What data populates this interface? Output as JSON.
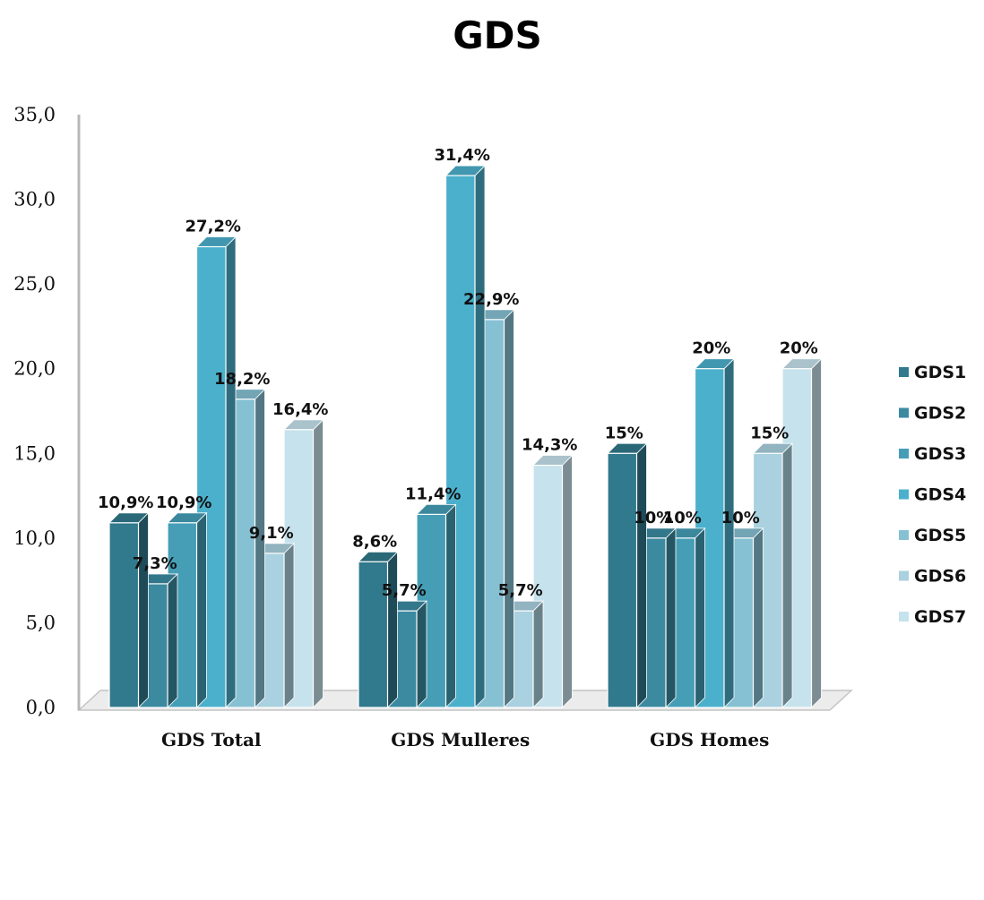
{
  "chart_data": {
    "type": "bar",
    "title": "GDS",
    "xlabel": "",
    "ylabel": "",
    "ylim": [
      0,
      35
    ],
    "yticks": [
      "0,0",
      "5,0",
      "10,0",
      "15,0",
      "20,0",
      "25,0",
      "30,0",
      "35,0"
    ],
    "categories": [
      "GDS Total",
      "GDS Mulleres",
      "GDS Homes"
    ],
    "legend_position": "right",
    "series": [
      {
        "name": "GDS1",
        "color": "#31798c",
        "values": [
          10.9,
          8.6,
          15
        ],
        "labels": [
          "10,9%",
          "8,6%",
          "15%"
        ]
      },
      {
        "name": "GDS2",
        "color": "#3b8aa0",
        "values": [
          7.3,
          5.7,
          10
        ],
        "labels": [
          "7,3%",
          "5,7%",
          "10%"
        ]
      },
      {
        "name": "GDS3",
        "color": "#459eb6",
        "values": [
          10.9,
          11.4,
          10
        ],
        "labels": [
          "10,9%",
          "11,4%",
          "10%"
        ]
      },
      {
        "name": "GDS4",
        "color": "#4bb0cb",
        "values": [
          27.2,
          31.4,
          20
        ],
        "labels": [
          "27,2%",
          "31,4%",
          "20%"
        ]
      },
      {
        "name": "GDS5",
        "color": "#86c0d3",
        "values": [
          18.2,
          22.9,
          10
        ],
        "labels": [
          "18,2%",
          "22,9%",
          "10%"
        ]
      },
      {
        "name": "GDS6",
        "color": "#a9d1df",
        "values": [
          9.1,
          5.7,
          15
        ],
        "labels": [
          "9,1%",
          "5,7%",
          "15%"
        ]
      },
      {
        "name": "GDS7",
        "color": "#c6e2ec",
        "values": [
          16.4,
          14.3,
          20
        ],
        "labels": [
          "16,4%",
          "14,3%",
          "20%"
        ]
      }
    ]
  }
}
